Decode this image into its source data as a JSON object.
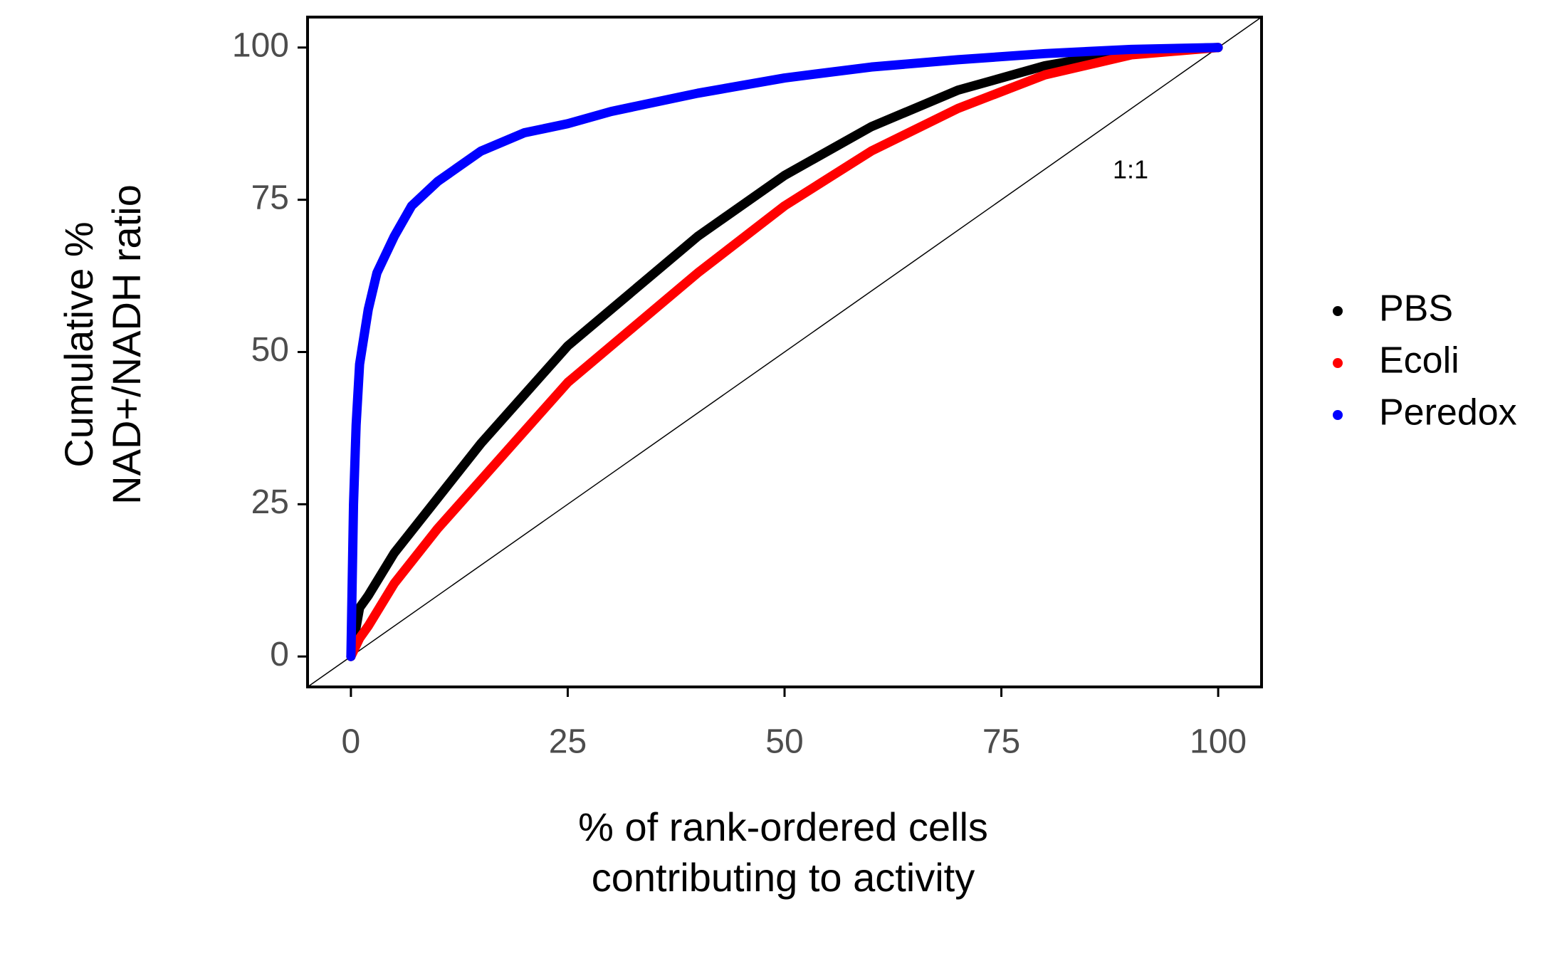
{
  "chart_data": {
    "type": "line",
    "xlabel": [
      "% of rank-ordered cells",
      "contributing to activity"
    ],
    "ylabel": [
      "Cumulative %",
      "NAD+/NADH ratio"
    ],
    "annotation": "1:1",
    "xlim": [
      -5,
      105
    ],
    "ylim": [
      -5,
      105
    ],
    "xticks": [
      0,
      25,
      50,
      75,
      100
    ],
    "yticks": [
      0,
      25,
      50,
      75,
      100
    ],
    "series": [
      {
        "name": "PBS",
        "color": "#000000",
        "x": [
          0,
          1,
          2,
          5,
          10,
          15,
          20,
          25,
          30,
          40,
          50,
          60,
          70,
          80,
          90,
          100
        ],
        "values": [
          0,
          8,
          10,
          17,
          26,
          35,
          43,
          51,
          57,
          69,
          79,
          87,
          93,
          97,
          99.5,
          100
        ]
      },
      {
        "name": "Ecoli",
        "color": "#ff0000",
        "x": [
          0,
          1,
          2,
          5,
          10,
          15,
          20,
          25,
          30,
          40,
          50,
          60,
          70,
          80,
          90,
          100
        ],
        "values": [
          0,
          3,
          5,
          12,
          21,
          29,
          37,
          45,
          51,
          63,
          74,
          83,
          90,
          95.5,
          98.8,
          100
        ]
      },
      {
        "name": "Peredox",
        "color": "#0000ff",
        "x": [
          0,
          0.3,
          0.6,
          1,
          2,
          3,
          5,
          7,
          10,
          15,
          20,
          25,
          30,
          40,
          50,
          60,
          70,
          80,
          90,
          100
        ],
        "values": [
          0,
          25,
          38,
          48,
          57,
          63,
          69,
          74,
          78,
          83,
          86,
          87.5,
          89.5,
          92.5,
          95,
          96.8,
          98,
          99,
          99.7,
          100
        ]
      }
    ]
  }
}
